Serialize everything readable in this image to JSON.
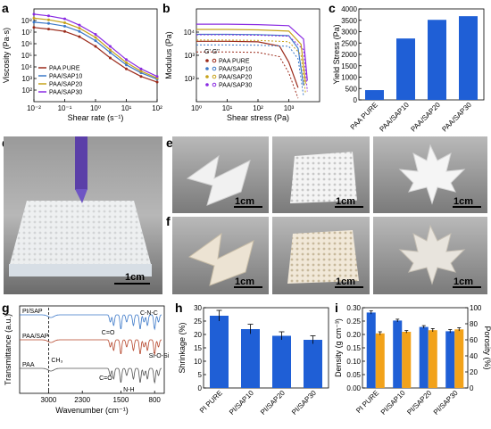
{
  "panels": {
    "a": {
      "label": "a"
    },
    "b": {
      "label": "b"
    },
    "c": {
      "label": "c"
    },
    "d": {
      "label": "d",
      "scale_text": "1cm"
    },
    "e": {
      "label": "e",
      "scale_texts": [
        "1cm",
        "1cm",
        "1cm"
      ]
    },
    "f": {
      "label": "f",
      "scale_texts": [
        "1cm",
        "1cm",
        "1cm"
      ]
    },
    "g": {
      "label": "g"
    },
    "h": {
      "label": "h"
    },
    "i": {
      "label": "i"
    }
  },
  "chart_data": [
    {
      "id": "a",
      "type": "line",
      "xlabel": "Shear rate (s⁻¹)",
      "ylabel": "Viscosity (Pa·s)",
      "xscale": "log",
      "yscale": "log",
      "xlim": [
        0.01,
        100
      ],
      "ylim": [
        10,
        100000000
      ],
      "xticks": [
        "10⁻²",
        "10⁻¹",
        "10⁰",
        "10¹",
        "10²"
      ],
      "yticks": [
        "10²",
        "10³",
        "10⁴",
        "10⁵",
        "10⁶",
        "10⁷",
        "10⁸"
      ],
      "legend_position": "bottom-left",
      "series": [
        {
          "name": "PAA PURE",
          "color": "#9b2a1a",
          "x": [
            0.01,
            0.03,
            0.1,
            0.3,
            1,
            3,
            10,
            30,
            100
          ],
          "y": [
            4000000,
            3000000,
            2000000,
            800000,
            150000,
            20000,
            3000,
            800,
            300
          ]
        },
        {
          "name": "PAA/SAP10",
          "color": "#3b78c8",
          "x": [
            0.01,
            0.03,
            0.1,
            0.3,
            1,
            3,
            10,
            30,
            100
          ],
          "y": [
            10000000,
            8000000,
            5000000,
            2000000,
            400000,
            50000,
            6000,
            1500,
            500
          ]
        },
        {
          "name": "PAA/SAP20",
          "color": "#c6a21a",
          "x": [
            0.01,
            0.03,
            0.1,
            0.3,
            1,
            3,
            10,
            30,
            100
          ],
          "y": [
            20000000,
            15000000,
            9000000,
            3500000,
            700000,
            80000,
            9000,
            2000,
            600
          ]
        },
        {
          "name": "PAA/SAP30",
          "color": "#8a2be2",
          "x": [
            0.01,
            0.03,
            0.1,
            0.3,
            1,
            3,
            10,
            30,
            100
          ],
          "y": [
            40000000,
            30000000,
            18000000,
            6000000,
            1200000,
            150000,
            15000,
            3000,
            800
          ]
        }
      ]
    },
    {
      "id": "b",
      "type": "line",
      "xlabel": "Shear stress (Pa)",
      "ylabel": "Modulus (Pa)",
      "xscale": "log",
      "yscale": "log",
      "xlim": [
        1,
        10000
      ],
      "ylim": [
        10,
        100000
      ],
      "xticks": [
        "10⁰",
        "10¹",
        "10²",
        "10³"
      ],
      "yticks": [
        "10²",
        "10³",
        "10⁴"
      ],
      "legend_header": "G'  G''",
      "legend_position": "center-right",
      "series": [
        {
          "name": "PAA PURE",
          "color": "#9b2a1a",
          "x": [
            1,
            10,
            100,
            500,
            1000,
            2000
          ],
          "y": [
            4000,
            4000,
            3800,
            2500,
            500,
            40
          ]
        },
        {
          "name": "PAA/SAP10",
          "color": "#3b78c8",
          "x": [
            1,
            10,
            100,
            1000,
            2000,
            3000
          ],
          "y": [
            8000,
            8000,
            7800,
            7000,
            2000,
            50
          ]
        },
        {
          "name": "PAA/SAP20",
          "color": "#c6a21a",
          "x": [
            1,
            10,
            100,
            1000,
            2500,
            3500
          ],
          "y": [
            13000,
            13000,
            12500,
            11000,
            3000,
            60
          ]
        },
        {
          "name": "PAA/SAP30",
          "color": "#8a2be2",
          "x": [
            1,
            10,
            100,
            1000,
            3000,
            4000
          ],
          "y": [
            22000,
            22000,
            21000,
            19000,
            5000,
            80
          ]
        }
      ]
    },
    {
      "id": "c",
      "type": "bar",
      "ylabel": "Yield Stress (Pa)",
      "categories": [
        "PAA PURE",
        "PAA/SAP10",
        "PAA/SAP20",
        "PAA/SAP30"
      ],
      "values": [
        430,
        2700,
        3520,
        3680
      ],
      "ylim": [
        0,
        4000
      ],
      "yticks": [
        "0",
        "500",
        "1000",
        "1500",
        "2000",
        "2500",
        "3000",
        "3500",
        "4000"
      ],
      "color": "#1f5fd6"
    },
    {
      "id": "g",
      "type": "line",
      "xlabel": "Wavenumber (cm⁻¹)",
      "ylabel": "Transmittance (a.u.)",
      "xlim": [
        3600,
        600
      ],
      "xticks": [
        "3000",
        "2300",
        "1500",
        "800"
      ],
      "series": [
        {
          "name": "PI/SAP",
          "color": "#3b78c8"
        },
        {
          "name": "PAA/SAP",
          "color": "#b5452a"
        },
        {
          "name": "PAA",
          "color": "#555555"
        }
      ],
      "annotations": [
        "C=O",
        "C-N-C",
        "Si-O-Si",
        "CH₃",
        "C=O",
        "N-H"
      ]
    },
    {
      "id": "h",
      "type": "bar",
      "ylabel": "Shrinkage (%)",
      "categories": [
        "PI PURE",
        "PI/SAP10",
        "PI/SAP20",
        "PI/SAP30"
      ],
      "values": [
        27,
        22,
        19.5,
        18
      ],
      "errors": [
        2,
        1.8,
        1.5,
        1.5
      ],
      "ylim": [
        0,
        30
      ],
      "yticks": [
        "0",
        "5",
        "10",
        "15",
        "20",
        "25",
        "30"
      ],
      "color": "#1f5fd6"
    },
    {
      "id": "i",
      "type": "bar",
      "ylabel": "Density (g cm⁻³)",
      "ylabel_right": "Porosity (%)",
      "categories": [
        "PI PURE",
        "PI/SAP10",
        "PI/SAP20",
        "PI/SAP30"
      ],
      "series": [
        {
          "name": "Density",
          "color": "#1f5fd6",
          "values": [
            0.282,
            0.252,
            0.228,
            0.212
          ],
          "errors": [
            0.006,
            0.005,
            0.005,
            0.006
          ]
        },
        {
          "name": "Porosity",
          "color": "#f2a21a",
          "values": [
            68,
            70,
            72,
            73
          ],
          "errors": [
            2,
            1.5,
            2,
            2
          ]
        }
      ],
      "ylim": [
        0,
        0.3
      ],
      "ylim_right": [
        0,
        100
      ],
      "yticks": [
        "0.00",
        "0.05",
        "0.10",
        "0.15",
        "0.20",
        "0.25",
        "0.30"
      ],
      "yticks_right": [
        "0",
        "20",
        "40",
        "60",
        "80",
        "100"
      ]
    }
  ]
}
